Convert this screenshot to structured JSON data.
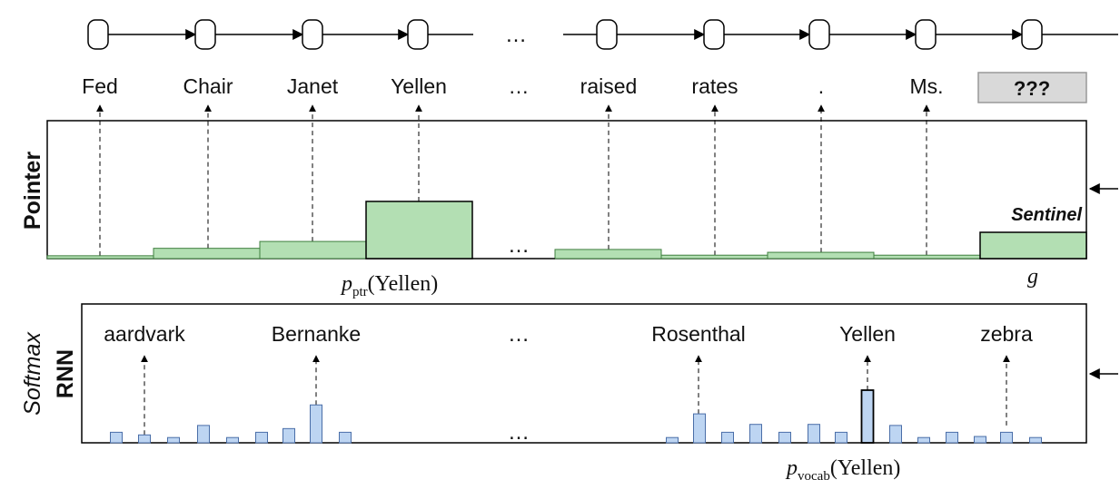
{
  "colors": {
    "pointer_fill": "#b3dfb3",
    "pointer_stroke": "#3f7f3f",
    "vocab_fill": "#bdd5f2",
    "vocab_stroke": "#4a6ea8",
    "query_box_fill": "#d9d9d9",
    "sentinel_label": "#888888"
  },
  "rnn_chain": {
    "left_ellipsis": "…",
    "cells_left": 4,
    "cells_right": 5
  },
  "tokens": [
    "Fed",
    "Chair",
    "Janet",
    "Yellen",
    "…",
    "raised",
    "rates",
    ".",
    "Ms."
  ],
  "query_token": "???",
  "pointer_panel": {
    "side_label": "Pointer",
    "sentinel_label": "Sentinel",
    "ellipsis": "…",
    "probabilities": [
      0.05,
      0.18,
      0.3,
      1.0,
      0,
      0.16,
      0.06,
      0.11,
      0.06
    ],
    "sentinel_probability": 0.46,
    "prob_label_main": "p",
    "prob_label_sub": "ptr",
    "prob_label_arg": "(Yellen)",
    "gate_label": "g"
  },
  "softmax_panel": {
    "side_label_1": "Softmax",
    "side_label_2": "RNN",
    "ellipsis_top": "…",
    "ellipsis_bottom": "…",
    "vocab_words": [
      "aardvark",
      "Bernanke",
      "Rosenthal",
      "Yellen",
      "zebra"
    ],
    "bar_values_left": [
      0.2,
      0.15,
      0.1,
      0.33,
      0.1,
      0.2,
      0.27,
      0.72,
      0.2
    ],
    "bar_values_right": [
      0.1,
      0.55,
      0.2,
      0.35,
      0.2,
      0.35,
      0.2,
      1.0,
      0.33,
      0.1,
      0.2,
      0.12,
      0.2,
      0.1
    ],
    "prob_label_main": "p",
    "prob_label_sub": "vocab",
    "prob_label_arg": "(Yellen)"
  }
}
